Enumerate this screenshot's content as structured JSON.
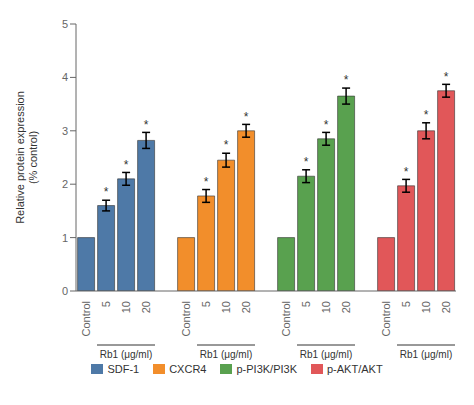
{
  "chart_data": {
    "type": "bar",
    "categories": [
      "Control",
      "5",
      "10",
      "20"
    ],
    "xlabel": "Rb1 (μg/ml)",
    "ylabel": "Relative protein expression\n(% control)",
    "ylim": [
      0,
      5
    ],
    "yticks": [
      0,
      1,
      2,
      3,
      4,
      5
    ],
    "legend": "bottom",
    "series": [
      {
        "name": "SDF-1",
        "color": "#4e79a7",
        "values": [
          1.0,
          1.6,
          2.1,
          2.82
        ],
        "errors": [
          0.0,
          0.1,
          0.12,
          0.15
        ],
        "significance": [
          null,
          "*",
          "*",
          "*"
        ]
      },
      {
        "name": "CXCR4",
        "color": "#f28e2b",
        "values": [
          1.0,
          1.78,
          2.45,
          3.0
        ],
        "errors": [
          0.0,
          0.12,
          0.13,
          0.12
        ],
        "significance": [
          null,
          "*",
          "*",
          "*"
        ]
      },
      {
        "name": "p-PI3K/PI3K",
        "color": "#59a14f",
        "values": [
          1.0,
          2.15,
          2.85,
          3.65
        ],
        "errors": [
          0.0,
          0.12,
          0.12,
          0.15
        ],
        "significance": [
          null,
          "*",
          "*",
          "*"
        ]
      },
      {
        "name": "p-AKT/AKT",
        "color": "#e15759",
        "values": [
          1.0,
          1.97,
          3.0,
          3.75
        ],
        "errors": [
          0.0,
          0.12,
          0.15,
          0.12
        ],
        "significance": [
          null,
          "*",
          "*",
          "*"
        ]
      }
    ]
  }
}
